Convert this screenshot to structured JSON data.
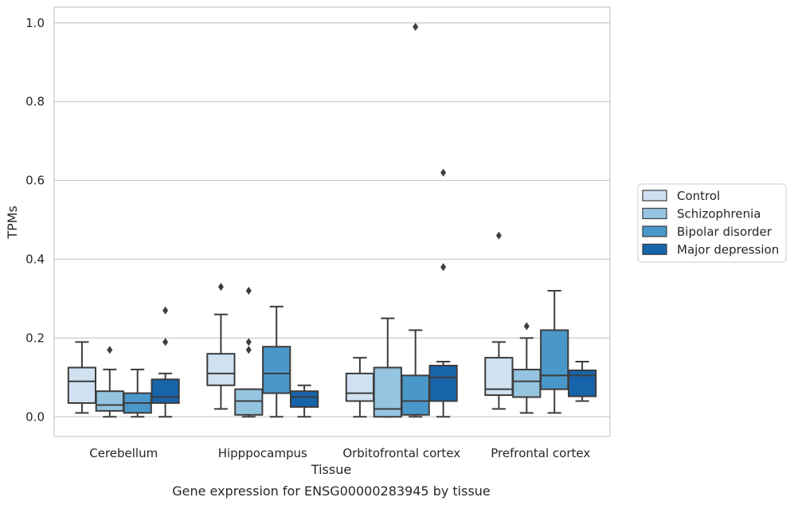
{
  "chart_data": {
    "type": "box",
    "title": "",
    "caption": "Gene expression for ENSG00000283945 by tissue",
    "xlabel": "Tissue",
    "ylabel": "TPMs",
    "ylim": [
      -0.05,
      1.04
    ],
    "yticks": [
      "0.0",
      "0.2",
      "0.4",
      "0.6",
      "0.8",
      "1.0"
    ],
    "categories": [
      "Cerebellum",
      "Hipppocampus",
      "Orbitofrontal cortex",
      "Prefrontal cortex"
    ],
    "grid": true,
    "legend_position": "right",
    "series": [
      {
        "name": "Control",
        "color": "#d0e1f2",
        "boxes": [
          {
            "whislo": 0.01,
            "q1": 0.035,
            "med": 0.09,
            "q3": 0.125,
            "whishi": 0.19,
            "fliers": []
          },
          {
            "whislo": 0.02,
            "q1": 0.08,
            "med": 0.11,
            "q3": 0.16,
            "whishi": 0.26,
            "fliers": [
              0.33
            ]
          },
          {
            "whislo": 0.0,
            "q1": 0.04,
            "med": 0.06,
            "q3": 0.11,
            "whishi": 0.15,
            "fliers": []
          },
          {
            "whislo": 0.02,
            "q1": 0.055,
            "med": 0.07,
            "q3": 0.15,
            "whishi": 0.19,
            "fliers": [
              0.46
            ]
          }
        ]
      },
      {
        "name": "Schizophrenia",
        "color": "#94c4df",
        "boxes": [
          {
            "whislo": 0.0,
            "q1": 0.015,
            "med": 0.03,
            "q3": 0.065,
            "whishi": 0.12,
            "fliers": [
              0.17
            ]
          },
          {
            "whislo": 0.0,
            "q1": 0.005,
            "med": 0.04,
            "q3": 0.07,
            "whishi": 0.07,
            "fliers": [
              0.17,
              0.19,
              0.32
            ]
          },
          {
            "whislo": 0.0,
            "q1": 0.0,
            "med": 0.02,
            "q3": 0.125,
            "whishi": 0.25,
            "fliers": []
          },
          {
            "whislo": 0.01,
            "q1": 0.05,
            "med": 0.09,
            "q3": 0.12,
            "whishi": 0.2,
            "fliers": [
              0.23
            ]
          }
        ]
      },
      {
        "name": "Bipolar disorder",
        "color": "#4a98c9",
        "boxes": [
          {
            "whislo": 0.0,
            "q1": 0.01,
            "med": 0.035,
            "q3": 0.06,
            "whishi": 0.12,
            "fliers": []
          },
          {
            "whislo": 0.0,
            "q1": 0.06,
            "med": 0.11,
            "q3": 0.178,
            "whishi": 0.28,
            "fliers": []
          },
          {
            "whislo": 0.0,
            "q1": 0.005,
            "med": 0.04,
            "q3": 0.105,
            "whishi": 0.22,
            "fliers": [
              0.99
            ]
          },
          {
            "whislo": 0.01,
            "q1": 0.07,
            "med": 0.105,
            "q3": 0.22,
            "whishi": 0.32,
            "fliers": []
          }
        ]
      },
      {
        "name": "Major depression",
        "color": "#1764ab",
        "boxes": [
          {
            "whislo": 0.0,
            "q1": 0.035,
            "med": 0.05,
            "q3": 0.095,
            "whishi": 0.11,
            "fliers": [
              0.19,
              0.27
            ]
          },
          {
            "whislo": 0.0,
            "q1": 0.025,
            "med": 0.05,
            "q3": 0.065,
            "whishi": 0.08,
            "fliers": []
          },
          {
            "whislo": 0.0,
            "q1": 0.04,
            "med": 0.1,
            "q3": 0.13,
            "whishi": 0.14,
            "fliers": [
              0.38,
              0.62
            ]
          },
          {
            "whislo": 0.04,
            "q1": 0.052,
            "med": 0.105,
            "q3": 0.118,
            "whishi": 0.14,
            "fliers": []
          }
        ]
      }
    ]
  }
}
